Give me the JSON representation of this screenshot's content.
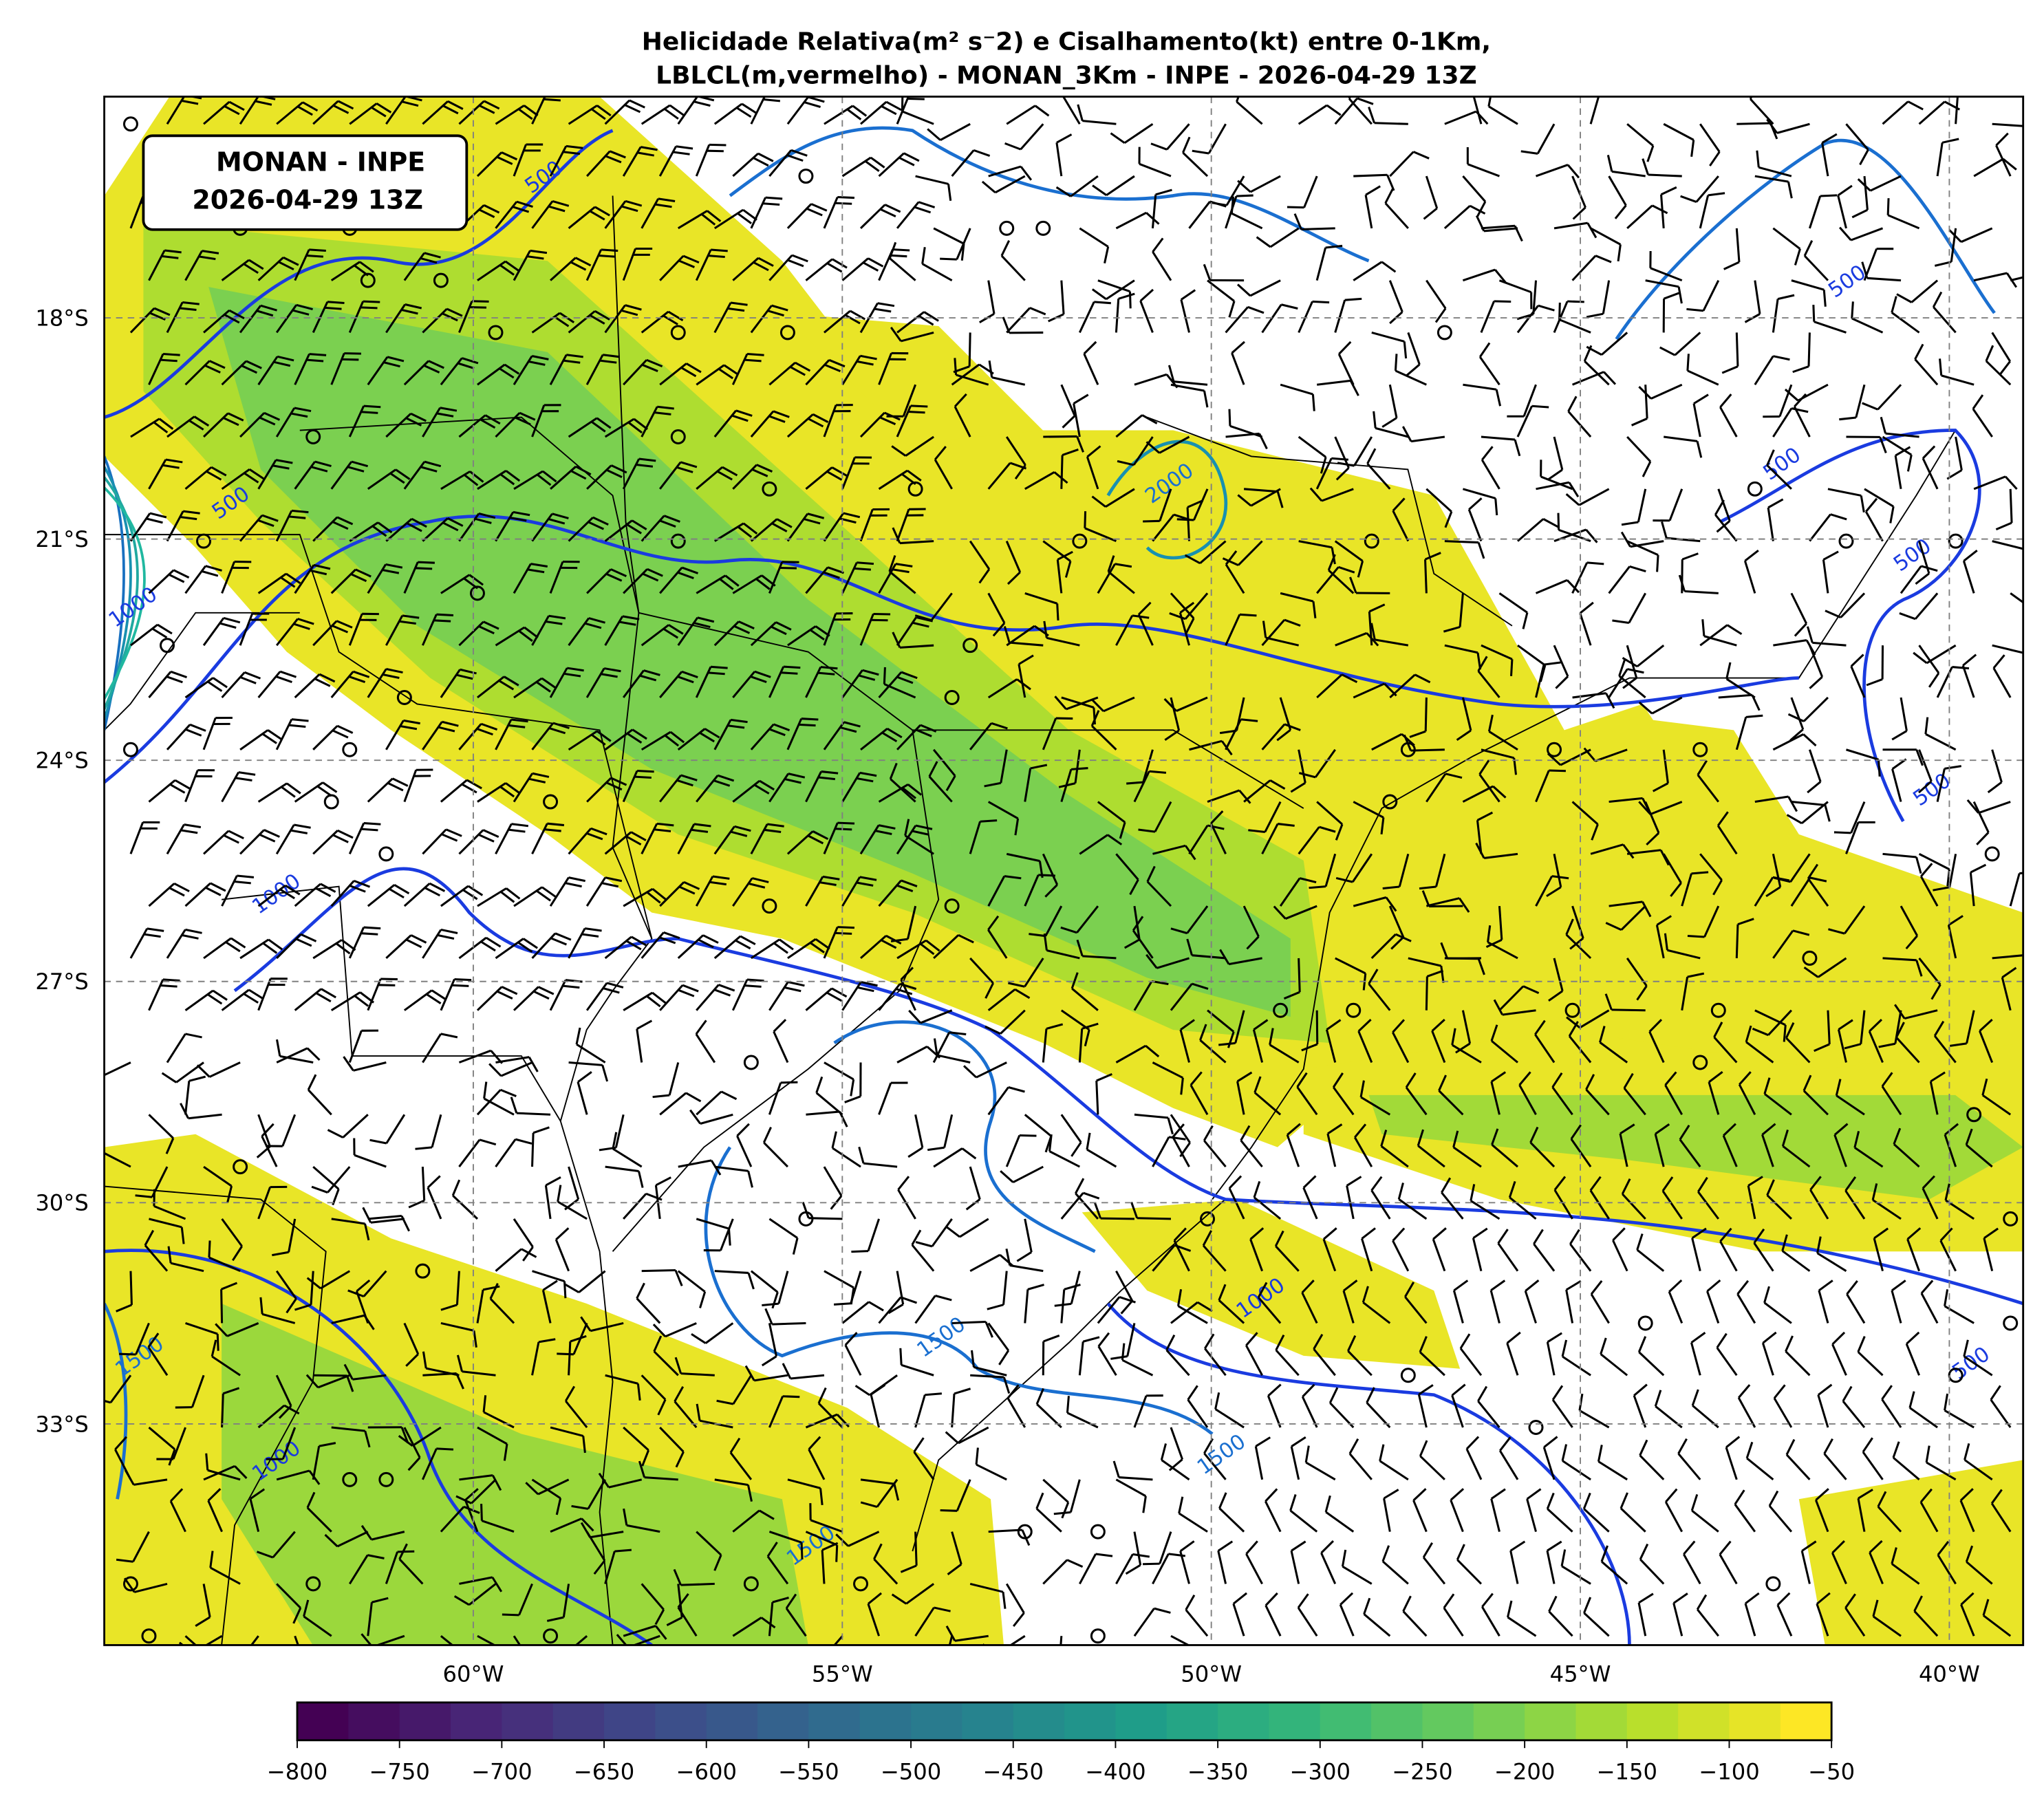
{
  "title": {
    "line1": "Helicidade Relativa(m² s⁻2) e Cisalhamento(kt) entre 0-1Km,",
    "line2": "LBLCL(m,vermelho) - MONAN_3Km - INPE - 2026-04-29 13Z"
  },
  "info_box": {
    "line1": "MONAN - INPE",
    "line2": "2026-04-29 13Z"
  },
  "chart_data": {
    "type": "heatmap",
    "subtype": "filled contour map with contour lines and wind barbs",
    "x_extent_lon": [
      -65,
      -39
    ],
    "y_extent_lat": [
      -36,
      -15
    ],
    "x_ticks": [
      {
        "value": -60,
        "label": "60°W"
      },
      {
        "value": -55,
        "label": "55°W"
      },
      {
        "value": -50,
        "label": "50°W"
      },
      {
        "value": -45,
        "label": "45°W"
      },
      {
        "value": -40,
        "label": "40°W"
      }
    ],
    "y_ticks": [
      {
        "value": -18,
        "label": "18°S"
      },
      {
        "value": -21,
        "label": "21°S"
      },
      {
        "value": -24,
        "label": "24°S"
      },
      {
        "value": -27,
        "label": "27°S"
      },
      {
        "value": -30,
        "label": "30°S"
      },
      {
        "value": -33,
        "label": "33°S"
      }
    ],
    "grid": true,
    "colorbar": {
      "colormap": "viridis",
      "range": [
        -800,
        -50
      ],
      "step": 25,
      "orientation": "horizontal",
      "placement": "bottom",
      "ticks": [
        "−800",
        "−750",
        "−700",
        "−650",
        "−600",
        "−550",
        "−500",
        "−450",
        "−400",
        "−350",
        "−300",
        "−250",
        "−200",
        "−150",
        "−100",
        "−50"
      ]
    },
    "contour_labels": [
      "500",
      "500",
      "500",
      "500",
      "500",
      "500",
      "500",
      "1000",
      "1000",
      "1000",
      "1000",
      "1500",
      "1500",
      "1500",
      "1500",
      "2000"
    ],
    "colors": {
      "contour_lines": "#1a3be0",
      "contour_lines_high": "#1a6fd0",
      "barbs": "#000000",
      "grid": "#808080"
    }
  }
}
